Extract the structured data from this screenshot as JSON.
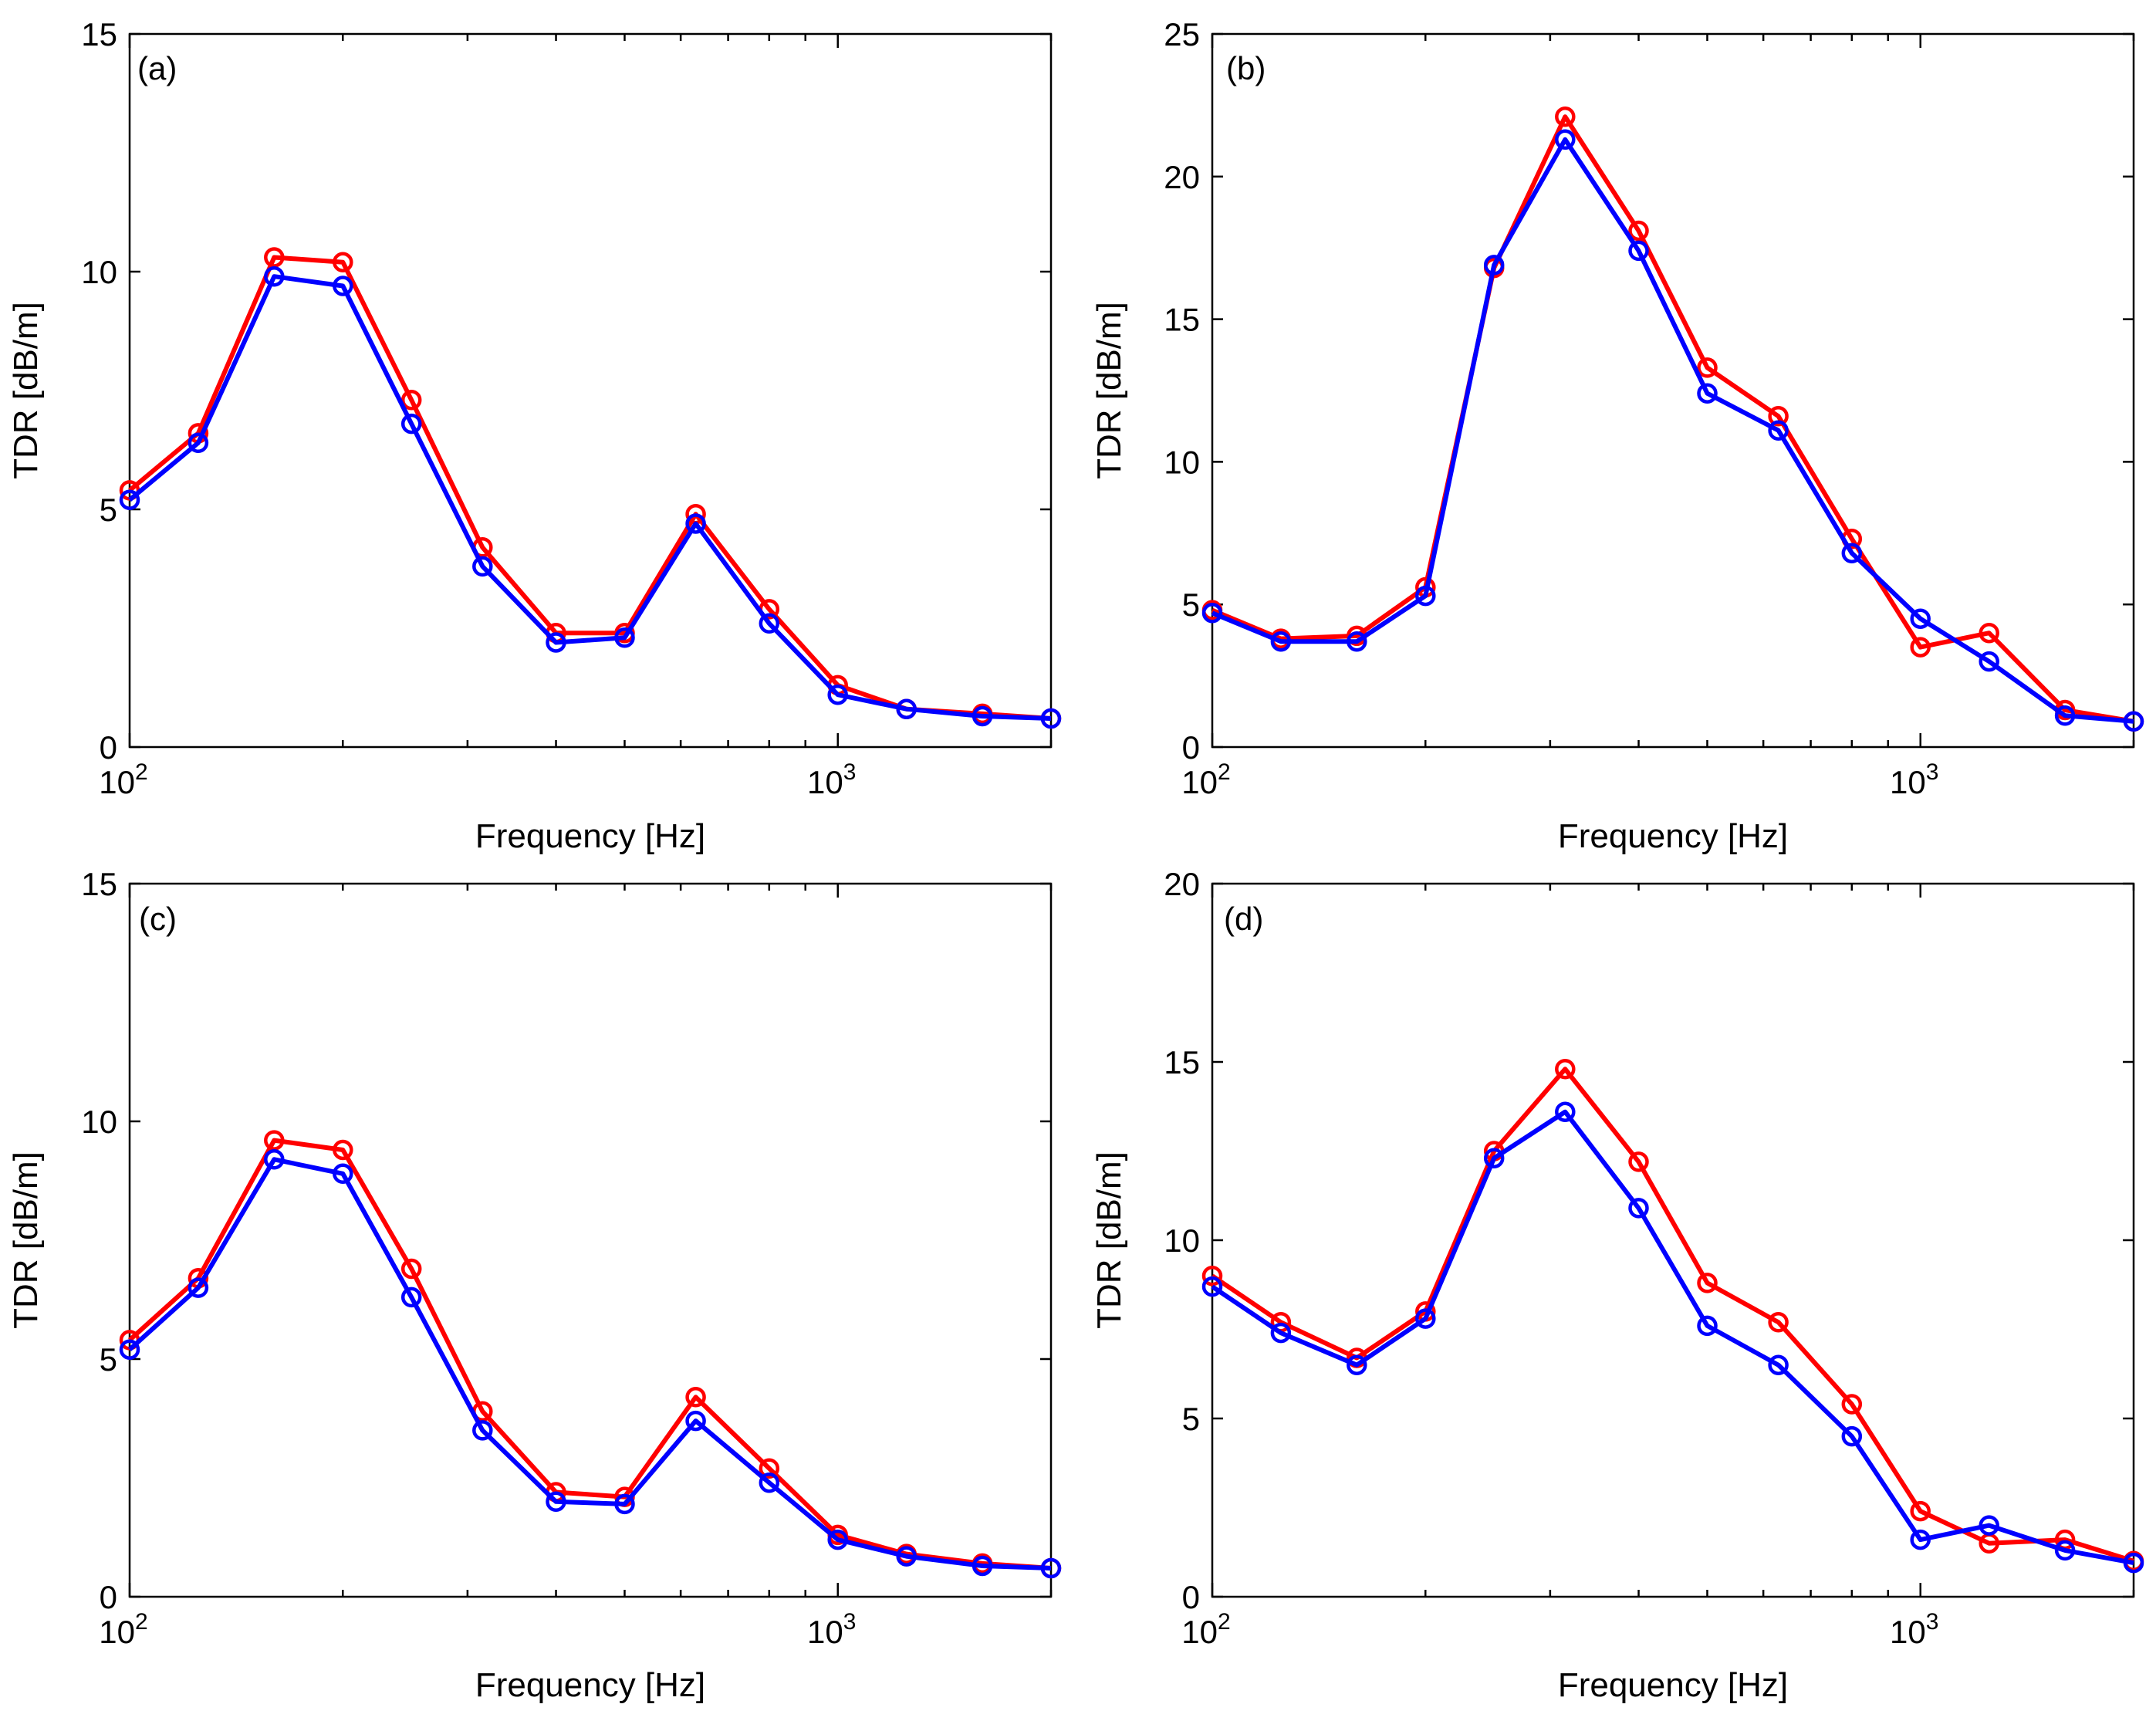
{
  "chart_data": [
    {
      "type": "line",
      "panel_label": "(a)",
      "xlabel": "Frequency [Hz]",
      "ylabel": "TDR [dB/m]",
      "xscale": "log",
      "xlim": [
        100,
        2000
      ],
      "ylim": [
        0,
        15
      ],
      "yticks": [
        0,
        5,
        10,
        15
      ],
      "xticks": [
        {
          "base": "10",
          "exp": "2",
          "value": 100
        },
        {
          "base": "10",
          "exp": "3",
          "value": 1000
        }
      ],
      "x": [
        100,
        125,
        160,
        200,
        250,
        315,
        400,
        500,
        630,
        800,
        1000,
        1250,
        1600,
        2000
      ],
      "series": [
        {
          "name": "red",
          "color": "#ff0000",
          "values": [
            5.4,
            6.6,
            10.3,
            10.2,
            7.3,
            4.2,
            2.4,
            2.4,
            4.9,
            2.9,
            1.3,
            0.8,
            0.7,
            0.6
          ]
        },
        {
          "name": "blue",
          "color": "#0000ff",
          "values": [
            5.2,
            6.4,
            9.9,
            9.7,
            6.8,
            3.8,
            2.2,
            2.3,
            4.7,
            2.6,
            1.1,
            0.8,
            0.65,
            0.6
          ]
        }
      ]
    },
    {
      "type": "line",
      "panel_label": "(b)",
      "xlabel": "Frequency [Hz]",
      "ylabel": "TDR [dB/m]",
      "xscale": "log",
      "xlim": [
        100,
        2000
      ],
      "ylim": [
        0,
        25
      ],
      "yticks": [
        0,
        5,
        10,
        15,
        20,
        25
      ],
      "xticks": [
        {
          "base": "10",
          "exp": "2",
          "value": 100
        },
        {
          "base": "10",
          "exp": "3",
          "value": 1000
        }
      ],
      "x": [
        100,
        125,
        160,
        200,
        250,
        315,
        400,
        500,
        630,
        800,
        1000,
        1250,
        1600,
        2000
      ],
      "series": [
        {
          "name": "red",
          "color": "#ff0000",
          "values": [
            4.8,
            3.8,
            3.9,
            5.6,
            16.8,
            22.1,
            18.1,
            13.3,
            11.6,
            7.3,
            3.5,
            4.0,
            1.3,
            0.9
          ]
        },
        {
          "name": "blue",
          "color": "#0000ff",
          "values": [
            4.7,
            3.7,
            3.7,
            5.3,
            16.9,
            21.3,
            17.4,
            12.4,
            11.1,
            6.8,
            4.5,
            3.0,
            1.1,
            0.9
          ]
        }
      ]
    },
    {
      "type": "line",
      "panel_label": "(c)",
      "xlabel": "Frequency [Hz]",
      "ylabel": "TDR [dB/m]",
      "xscale": "log",
      "xlim": [
        100,
        2000
      ],
      "ylim": [
        0,
        15
      ],
      "yticks": [
        0,
        5,
        10,
        15
      ],
      "xticks": [
        {
          "base": "10",
          "exp": "2",
          "value": 100
        },
        {
          "base": "10",
          "exp": "3",
          "value": 1000
        }
      ],
      "x": [
        100,
        125,
        160,
        200,
        250,
        315,
        400,
        500,
        630,
        800,
        1000,
        1250,
        1600,
        2000
      ],
      "series": [
        {
          "name": "red",
          "color": "#ff0000",
          "values": [
            5.4,
            6.7,
            9.6,
            9.4,
            6.9,
            3.9,
            2.2,
            2.1,
            4.2,
            2.7,
            1.3,
            0.9,
            0.7,
            0.6
          ]
        },
        {
          "name": "blue",
          "color": "#0000ff",
          "values": [
            5.2,
            6.5,
            9.2,
            8.9,
            6.3,
            3.5,
            2.0,
            1.95,
            3.7,
            2.4,
            1.2,
            0.85,
            0.65,
            0.6
          ]
        }
      ]
    },
    {
      "type": "line",
      "panel_label": "(d)",
      "xlabel": "Frequency [Hz]",
      "ylabel": "TDR [dB/m]",
      "xscale": "log",
      "xlim": [
        100,
        2000
      ],
      "ylim": [
        0,
        20
      ],
      "yticks": [
        0,
        5,
        10,
        15,
        20
      ],
      "xticks": [
        {
          "base": "10",
          "exp": "2",
          "value": 100
        },
        {
          "base": "10",
          "exp": "3",
          "value": 1000
        }
      ],
      "x": [
        100,
        125,
        160,
        200,
        250,
        315,
        400,
        500,
        630,
        800,
        1000,
        1250,
        1600,
        2000
      ],
      "series": [
        {
          "name": "red",
          "color": "#ff0000",
          "values": [
            9.0,
            7.7,
            6.7,
            8.0,
            12.5,
            14.8,
            12.2,
            8.8,
            7.7,
            5.4,
            2.4,
            1.5,
            1.6,
            1.0
          ]
        },
        {
          "name": "blue",
          "color": "#0000ff",
          "values": [
            8.7,
            7.4,
            6.5,
            7.8,
            12.3,
            13.6,
            10.9,
            7.6,
            6.5,
            4.5,
            1.6,
            2.0,
            1.3,
            0.95
          ]
        }
      ]
    }
  ]
}
